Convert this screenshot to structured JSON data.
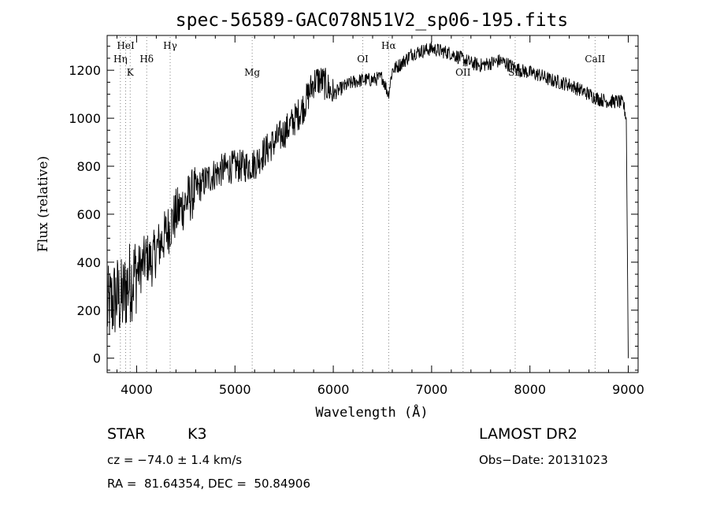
{
  "chart_data": {
    "type": "line",
    "title": "spec-56589-GAC078N51V2_sp06-195.fits",
    "xlabel": "Wavelength (Å)",
    "ylabel": "Flux (relative)",
    "xlim": [
      3700,
      9100
    ],
    "ylim": [
      -60,
      1345
    ],
    "xticks": [
      4000,
      5000,
      6000,
      7000,
      8000,
      9000
    ],
    "yticks": [
      0,
      200,
      400,
      600,
      800,
      1000,
      1200
    ],
    "grid": false,
    "series": [
      {
        "color": "#000000",
        "x": [
          3700,
          3750,
          3800,
          3850,
          3900,
          3950,
          4000,
          4050,
          4100,
          4150,
          4200,
          4300,
          4400,
          4500,
          4600,
          4700,
          4800,
          4900,
          5000,
          5100,
          5200,
          5300,
          5400,
          5500,
          5600,
          5700,
          5800,
          5850,
          5900,
          6000,
          6100,
          6200,
          6300,
          6400,
          6500,
          6560,
          6600,
          6700,
          6800,
          6900,
          7000,
          7100,
          7200,
          7300,
          7400,
          7500,
          7600,
          7700,
          7800,
          7900,
          8000,
          8100,
          8200,
          8300,
          8400,
          8500,
          8600,
          8700,
          8800,
          8900,
          8950,
          8980,
          9000
        ],
        "y": [
          200,
          230,
          260,
          240,
          300,
          330,
          360,
          380,
          420,
          400,
          450,
          520,
          600,
          650,
          700,
          740,
          770,
          790,
          800,
          800,
          810,
          860,
          900,
          940,
          990,
          1050,
          1150,
          1160,
          1150,
          1100,
          1130,
          1150,
          1160,
          1160,
          1170,
          1100,
          1200,
          1230,
          1270,
          1280,
          1290,
          1280,
          1270,
          1250,
          1230,
          1220,
          1230,
          1240,
          1220,
          1200,
          1190,
          1180,
          1160,
          1150,
          1140,
          1120,
          1100,
          1080,
          1070,
          1070,
          1060,
          1000,
          0
        ]
      }
    ],
    "line_markers": [
      {
        "label": "HeI",
        "x": 3889,
        "tier": 0
      },
      {
        "label": "Hη",
        "x": 3835,
        "tier": 1
      },
      {
        "label": "K",
        "x": 3934,
        "tier": 2
      },
      {
        "label": "Hδ",
        "x": 4102,
        "tier": 1
      },
      {
        "label": "Hγ",
        "x": 4341,
        "tier": 0
      },
      {
        "label": "Mg",
        "x": 5175,
        "tier": 2
      },
      {
        "label": "OI",
        "x": 6300,
        "tier": 1
      },
      {
        "label": "Hα",
        "x": 6563,
        "tier": 0
      },
      {
        "label": "OII",
        "x": 7320,
        "tier": 2
      },
      {
        "label": "SII",
        "x": 7850,
        "tier": 2
      },
      {
        "label": "CaII",
        "x": 8662,
        "tier": 1
      }
    ]
  },
  "info": {
    "object_class": "STAR",
    "subclass": "K3",
    "survey": "LAMOST DR2",
    "cz": "cz = −74.0 ± 1.4 km/s",
    "obs_date": "Obs−Date: 20131023",
    "radec": "RA =  81.64354, DEC =  50.84906"
  }
}
